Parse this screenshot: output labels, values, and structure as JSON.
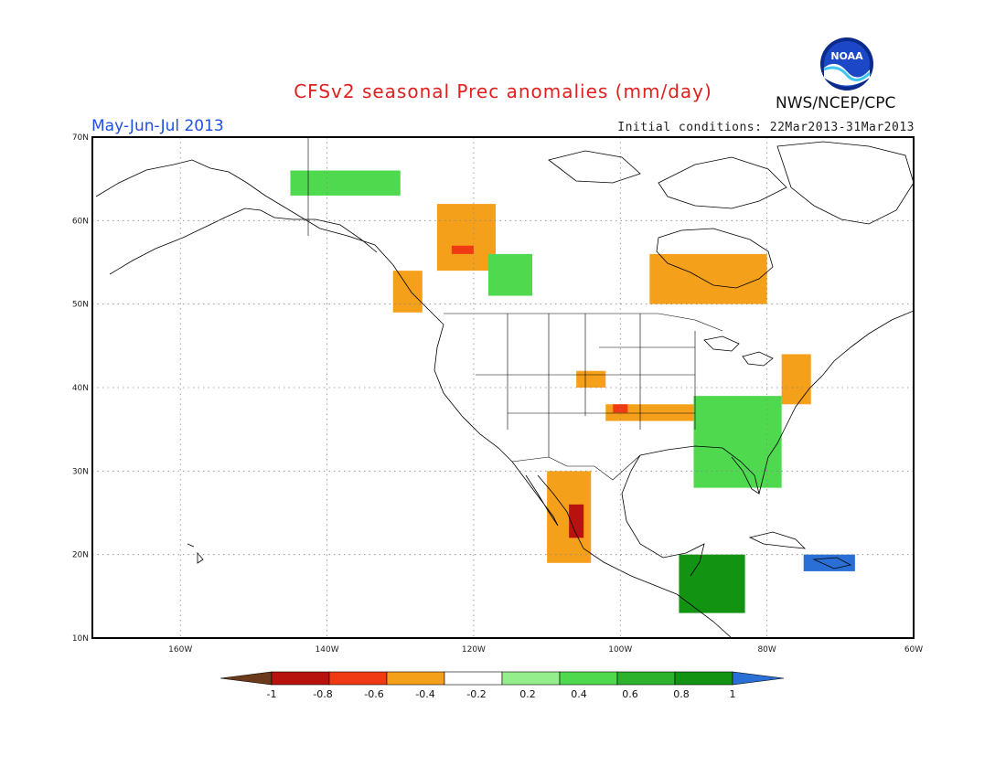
{
  "title": "CFSv2 seasonal Prec anomalies (mm/day)",
  "season": "May-Jun-Jul 2013",
  "initial_conditions": "Initial conditions: 22Mar2013-31Mar2013",
  "agency": "NWS/NCEP/CPC",
  "logo_text": "NOAA",
  "map": {
    "lon_range": [
      -172,
      -60
    ],
    "lat_range": [
      10,
      70
    ],
    "lon_ticks": [
      "160W",
      "140W",
      "120W",
      "100W",
      "80W",
      "60W"
    ],
    "lat_ticks": [
      "70N",
      "60N",
      "50N",
      "40N",
      "30N",
      "20N",
      "10N"
    ],
    "grid": true
  },
  "colorbar": {
    "labels": [
      "-1",
      "-0.8",
      "-0.6",
      "-0.4",
      "-0.2",
      "0.2",
      "0.4",
      "0.6",
      "0.8",
      "1"
    ],
    "colors": [
      "#6b3a1c",
      "#b8120e",
      "#f03a14",
      "#f5a01a",
      "#ffffff",
      "#95ee8c",
      "#4fd94f",
      "#2db22d",
      "#129312",
      "#2a6fd6"
    ]
  },
  "anomaly_regions": [
    {
      "name": "central-canada-west",
      "lon": [
        -125,
        -117
      ],
      "lat": [
        54,
        62
      ],
      "level": "-0.4"
    },
    {
      "name": "central-canada-west-core",
      "lon": [
        -123,
        -120
      ],
      "lat": [
        56,
        57
      ],
      "level": "-0.6"
    },
    {
      "name": "hudson-bay-south",
      "lon": [
        -96,
        -80
      ],
      "lat": [
        50,
        56
      ],
      "level": "-0.4"
    },
    {
      "name": "pacific-nw-coast",
      "lon": [
        -131,
        -127
      ],
      "lat": [
        49,
        54
      ],
      "level": "-0.4"
    },
    {
      "name": "central-plains",
      "lon": [
        -102,
        -90
      ],
      "lat": [
        36,
        38
      ],
      "level": "-0.4"
    },
    {
      "name": "kansas-core",
      "lon": [
        -101,
        -99
      ],
      "lat": [
        37,
        38
      ],
      "level": "-0.6"
    },
    {
      "name": "iowa-nebraska",
      "lon": [
        -106,
        -102
      ],
      "lat": [
        40,
        42
      ],
      "level": "-0.4"
    },
    {
      "name": "great-lakes-mid-atlantic",
      "lon": [
        -78,
        -74
      ],
      "lat": [
        38,
        44
      ],
      "level": "-0.4"
    },
    {
      "name": "west-mexico",
      "lon": [
        -110,
        -104
      ],
      "lat": [
        19,
        30
      ],
      "level": "-0.4"
    },
    {
      "name": "west-mexico-core",
      "lon": [
        -107,
        -105
      ],
      "lat": [
        22,
        26
      ],
      "level": "-0.8"
    },
    {
      "name": "southeast-us",
      "lon": [
        -88,
        -80
      ],
      "lat": [
        29,
        37
      ],
      "level": "0.4"
    },
    {
      "name": "southeast-us-light",
      "lon": [
        -90,
        -78
      ],
      "lat": [
        28,
        39
      ],
      "level": "0.2"
    },
    {
      "name": "western-canada",
      "lon": [
        -118,
        -112
      ],
      "lat": [
        51,
        56
      ],
      "level": "0.2"
    },
    {
      "name": "alaska-north",
      "lon": [
        -145,
        -130
      ],
      "lat": [
        63,
        66
      ],
      "level": "0.2"
    },
    {
      "name": "central-america",
      "lon": [
        -92,
        -83
      ],
      "lat": [
        13,
        20
      ],
      "level": "0.6"
    },
    {
      "name": "caribbean",
      "lon": [
        -75,
        -68
      ],
      "lat": [
        18,
        20
      ],
      "level": "0.8"
    }
  ]
}
